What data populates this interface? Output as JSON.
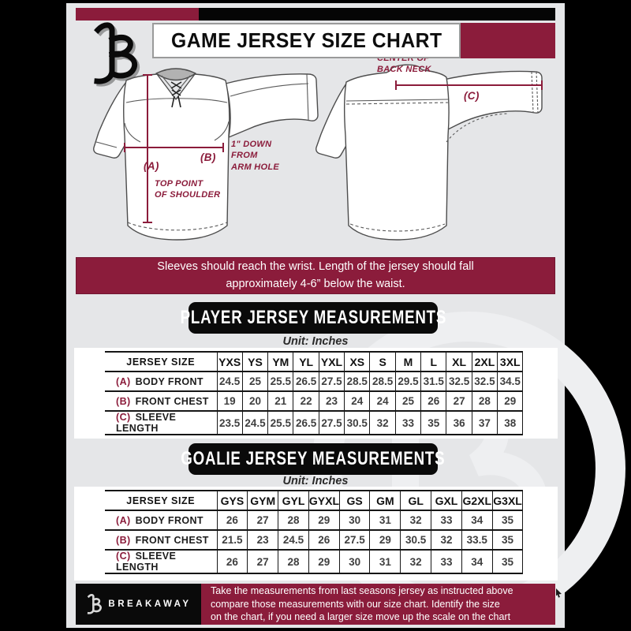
{
  "header": {
    "title": "GAME JERSEY SIZE CHART",
    "logo": "breakaway-monogram-icon"
  },
  "colors": {
    "maroon": "#8B1C3B",
    "card_background": "#E5E6E8",
    "black": "#0a0a0a"
  },
  "diagram": {
    "front": {
      "key_a": "(A)",
      "note_a": "TOP POINT\nOF SHOULDER",
      "key_b": "(B)",
      "note_b": "1\" DOWN\nFROM\nARM HOLE"
    },
    "back": {
      "key_c": "(C)",
      "note_c": "CENTER OF\nBACK NECK"
    }
  },
  "banner": {
    "text": "Sleeves should reach the wrist. Length of the jersey should fall\napproximately 4-6” below the waist."
  },
  "player_table": {
    "title": "PLAYER JERSEY MEASUREMENTS",
    "unit": "Unit: Inches",
    "size_header": "JERSEY SIZE",
    "sizes": [
      "YXS",
      "YS",
      "YM",
      "YL",
      "YXL",
      "XS",
      "S",
      "M",
      "L",
      "XL",
      "2XL",
      "3XL"
    ],
    "rows": [
      {
        "key": "(A)",
        "label": "BODY FRONT",
        "values": [
          "24.5",
          "25",
          "25.5",
          "26.5",
          "27.5",
          "28.5",
          "28.5",
          "29.5",
          "31.5",
          "32.5",
          "32.5",
          "34.5"
        ]
      },
      {
        "key": "(B)",
        "label": "FRONT CHEST",
        "values": [
          "19",
          "20",
          "21",
          "22",
          "23",
          "24",
          "24",
          "25",
          "26",
          "27",
          "28",
          "29"
        ]
      },
      {
        "key": "(C)",
        "label": "SLEEVE LENGTH",
        "values": [
          "23.5",
          "24.5",
          "25.5",
          "26.5",
          "27.5",
          "30.5",
          "32",
          "33",
          "35",
          "36",
          "37",
          "38"
        ]
      }
    ]
  },
  "goalie_table": {
    "title": "GOALIE JERSEY MEASUREMENTS",
    "unit": "Unit: Inches",
    "size_header": "JERSEY SIZE",
    "sizes": [
      "GYS",
      "GYM",
      "GYL",
      "GYXL",
      "GS",
      "GM",
      "GL",
      "GXL",
      "G2XL",
      "G3XL"
    ],
    "rows": [
      {
        "key": "(A)",
        "label": "BODY FRONT",
        "values": [
          "26",
          "27",
          "28",
          "29",
          "30",
          "31",
          "32",
          "33",
          "34",
          "35"
        ]
      },
      {
        "key": "(B)",
        "label": "FRONT CHEST",
        "values": [
          "21.5",
          "23",
          "24.5",
          "26",
          "27.5",
          "29",
          "30.5",
          "32",
          "33.5",
          "35"
        ]
      },
      {
        "key": "(C)",
        "label": "SLEEVE LENGTH",
        "values": [
          "26",
          "27",
          "28",
          "29",
          "30",
          "31",
          "32",
          "33",
          "34",
          "35"
        ]
      }
    ]
  },
  "footer": {
    "brand": "BREAKAWAY",
    "text": "Take the measurements from last seasons jersey as instructed above\ncompare those measurements  with our size chart. Identify the size\non the chart, if you need a larger size move up the scale on the chart"
  }
}
